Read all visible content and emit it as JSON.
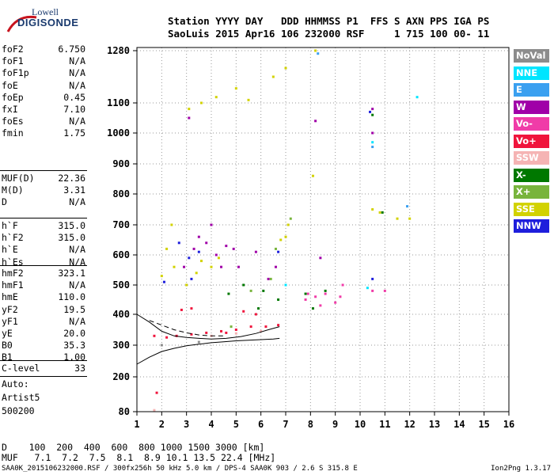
{
  "logo": {
    "line1": "Lowell",
    "line2": "DIGISONDE"
  },
  "header": {
    "line1": "Station YYYY DAY   DDD HHMMSS P1  FFS S AXN PPS IGA PS",
    "line2": "SaoLuis 2015 Apr16 106 232000 RSF     1 715 100 00- 11"
  },
  "params_group1": [
    {
      "label": "foF2",
      "value": "6.750"
    },
    {
      "label": "foF1",
      "value": "N/A"
    },
    {
      "label": "foF1p",
      "value": "N/A"
    },
    {
      "label": "foE",
      "value": "N/A"
    },
    {
      "label": "foEp",
      "value": "0.45"
    },
    {
      "label": "fxI",
      "value": "7.10"
    },
    {
      "label": "foEs",
      "value": "N/A"
    },
    {
      "label": "fmin",
      "value": "1.75"
    }
  ],
  "params_group2": [
    {
      "label": "MUF(D)",
      "value": "22.36"
    },
    {
      "label": "M(D)",
      "value": "3.31"
    },
    {
      "label": "D",
      "value": "N/A"
    }
  ],
  "params_group3": [
    {
      "label": "h`F",
      "value": "315.0"
    },
    {
      "label": "h`F2",
      "value": "315.0"
    },
    {
      "label": "h`E",
      "value": "N/A"
    },
    {
      "label": "h`Es",
      "value": "N/A"
    }
  ],
  "params_group4": [
    {
      "label": "hmF2",
      "value": "323.1"
    },
    {
      "label": "hmF1",
      "value": "N/A"
    },
    {
      "label": "hmE",
      "value": "110.0"
    },
    {
      "label": "yF2",
      "value": "19.5"
    },
    {
      "label": "yF1",
      "value": "N/A"
    },
    {
      "label": "yE",
      "value": "20.0"
    },
    {
      "label": "B0",
      "value": "35.3"
    },
    {
      "label": "B1",
      "value": "1.00"
    }
  ],
  "params_group5": [
    {
      "label": "C-level",
      "value": "33"
    }
  ],
  "auto": {
    "line1": "Auto:",
    "line2": "Artist5",
    "line3": "500200"
  },
  "legend": [
    {
      "label": "NoVal",
      "color": "#8c8c8c"
    },
    {
      "label": "NNE",
      "color": "#00e5ff"
    },
    {
      "label": "E",
      "color": "#3aa0f0"
    },
    {
      "label": "W",
      "color": "#a000a8"
    },
    {
      "label": "Vo-",
      "color": "#f03ca8"
    },
    {
      "label": "Vo+",
      "color": "#f0143c"
    },
    {
      "label": "SSW",
      "color": "#f5b4b4"
    },
    {
      "label": "X-",
      "color": "#007800"
    },
    {
      "label": "X+",
      "color": "#78b43c"
    },
    {
      "label": "SSE",
      "color": "#d2d200"
    },
    {
      "label": "NNW",
      "color": "#1e1edc"
    }
  ],
  "bottom": {
    "d_row": "D    100  200  400  600  800 1000 1500 3000 [km]",
    "muf_row": "MUF   7.1  7.2  7.5  8.1  8.9 10.1 13.5 22.4 [MHz]"
  },
  "footer": {
    "left": "SAA0K_2015106232000.RSF / 300fx256h 50 kHz 5.0 km / DPS-4 SAA0K 903 / 2.6 S 315.8 E",
    "right": "Ion2Png 1.3.17"
  },
  "chart_data": {
    "type": "scatter",
    "title": "",
    "xlabel": "",
    "ylabel": "",
    "x_ticks": [
      "1",
      "2",
      "3",
      "4",
      "5",
      "6",
      "7",
      "8",
      "9",
      "10",
      "11",
      "12",
      "13",
      "14",
      "15",
      "16"
    ],
    "y_ticks": [
      "80",
      "200",
      "300",
      "400",
      "500",
      "600",
      "700",
      "800",
      "900",
      "1000",
      "1100",
      "1280"
    ],
    "xlim": [
      1,
      16
    ],
    "ylim": [
      80,
      1280
    ],
    "y_scale": "nonlinear",
    "grid": true,
    "series": [
      {
        "name": "W",
        "color": "#a000a8",
        "points": [
          [
            2.9,
            560
          ],
          [
            3.1,
            1050
          ],
          [
            3.3,
            620
          ],
          [
            3.5,
            660
          ],
          [
            4.0,
            700
          ],
          [
            4.4,
            560
          ],
          [
            4.6,
            630
          ],
          [
            4.9,
            620
          ],
          [
            5.1,
            560
          ],
          [
            5.8,
            610
          ],
          [
            6.3,
            520
          ],
          [
            6.6,
            560
          ],
          [
            8.2,
            1040
          ],
          [
            10.5,
            1080
          ],
          [
            10.5,
            1000
          ],
          [
            8.4,
            590
          ],
          [
            3.8,
            640
          ],
          [
            4.2,
            600
          ]
        ]
      },
      {
        "name": "Vo-",
        "color": "#f03ca8",
        "points": [
          [
            7.8,
            450
          ],
          [
            8.2,
            460
          ],
          [
            8.6,
            470
          ],
          [
            9.0,
            440
          ],
          [
            9.3,
            500
          ],
          [
            8.4,
            430
          ],
          [
            7.9,
            470
          ],
          [
            9.2,
            460
          ],
          [
            10.5,
            480
          ],
          [
            11.0,
            480
          ]
        ]
      },
      {
        "name": "Vo+",
        "color": "#f0143c",
        "points": [
          [
            1.7,
            330
          ],
          [
            2.2,
            325
          ],
          [
            2.6,
            330
          ],
          [
            3.2,
            335
          ],
          [
            3.8,
            340
          ],
          [
            4.4,
            345
          ],
          [
            5.0,
            350
          ],
          [
            5.6,
            360
          ],
          [
            6.2,
            360
          ],
          [
            6.7,
            365
          ],
          [
            4.6,
            340
          ],
          [
            5.3,
            410
          ],
          [
            5.8,
            400
          ],
          [
            2.8,
            415
          ],
          [
            1.8,
            145
          ],
          [
            3.2,
            420
          ]
        ]
      },
      {
        "name": "X-",
        "color": "#007800",
        "points": [
          [
            4.7,
            470
          ],
          [
            5.3,
            500
          ],
          [
            6.1,
            480
          ],
          [
            6.7,
            450
          ],
          [
            7.8,
            470
          ],
          [
            8.1,
            420
          ],
          [
            8.6,
            480
          ],
          [
            10.5,
            1060
          ],
          [
            10.9,
            740
          ],
          [
            5.9,
            420
          ]
        ]
      },
      {
        "name": "X+",
        "color": "#78b43c",
        "points": [
          [
            4.8,
            360
          ],
          [
            5.6,
            480
          ],
          [
            6.4,
            520
          ],
          [
            6.6,
            620
          ],
          [
            7.2,
            720
          ]
        ]
      },
      {
        "name": "SSE",
        "color": "#d2d200",
        "points": [
          [
            2.0,
            530
          ],
          [
            2.5,
            560
          ],
          [
            3.0,
            500
          ],
          [
            3.4,
            540
          ],
          [
            3.6,
            580
          ],
          [
            4.0,
            560
          ],
          [
            4.3,
            590
          ],
          [
            2.2,
            620
          ],
          [
            3.1,
            1080
          ],
          [
            3.6,
            1100
          ],
          [
            4.2,
            1120
          ],
          [
            5.0,
            1150
          ],
          [
            5.5,
            1110
          ],
          [
            6.5,
            1190
          ],
          [
            7.0,
            1220
          ],
          [
            8.2,
            1280
          ],
          [
            7.1,
            700
          ],
          [
            8.1,
            860
          ],
          [
            10.5,
            750
          ],
          [
            10.8,
            740
          ],
          [
            11.5,
            720
          ],
          [
            12.0,
            720
          ],
          [
            6.8,
            650
          ],
          [
            7.0,
            660
          ],
          [
            2.4,
            700
          ]
        ]
      },
      {
        "name": "NNW",
        "color": "#1e1edc",
        "points": [
          [
            2.7,
            640
          ],
          [
            3.1,
            590
          ],
          [
            3.5,
            610
          ],
          [
            2.1,
            510
          ],
          [
            3.2,
            520
          ],
          [
            6.7,
            610
          ],
          [
            10.4,
            1070
          ],
          [
            10.5,
            520
          ]
        ]
      },
      {
        "name": "NNE",
        "color": "#00e5ff",
        "points": [
          [
            10.5,
            970
          ],
          [
            12.3,
            1120
          ],
          [
            10.3,
            490
          ],
          [
            7.0,
            500
          ]
        ]
      },
      {
        "name": "E",
        "color": "#3aa0f0",
        "points": [
          [
            10.5,
            955
          ],
          [
            8.3,
            1270
          ],
          [
            11.9,
            760
          ]
        ]
      },
      {
        "name": "SSW",
        "color": "#f5b4b4",
        "points": [
          [
            4.0,
            330
          ],
          [
            5.0,
            338
          ],
          [
            6.0,
            345
          ],
          [
            1.7,
            85
          ]
        ]
      },
      {
        "name": "NoVal",
        "color": "#8c8c8c",
        "points": [
          [
            2.0,
            300
          ],
          [
            3.5,
            310
          ]
        ]
      }
    ],
    "profile_curves": [
      {
        "style": "solid",
        "points": [
          [
            1.0,
            240
          ],
          [
            1.5,
            262
          ],
          [
            2.0,
            280
          ],
          [
            2.5,
            290
          ],
          [
            3.0,
            298
          ],
          [
            3.5,
            303
          ],
          [
            4.0,
            308
          ],
          [
            4.5,
            311
          ],
          [
            5.0,
            314
          ],
          [
            5.5,
            316
          ],
          [
            6.0,
            318
          ],
          [
            6.5,
            320
          ],
          [
            6.75,
            322
          ]
        ]
      },
      {
        "style": "solid",
        "points": [
          [
            1.0,
            400
          ],
          [
            1.5,
            375
          ],
          [
            2.0,
            345
          ],
          [
            2.5,
            330
          ],
          [
            3.0,
            325
          ],
          [
            3.5,
            322
          ],
          [
            4.0,
            320
          ],
          [
            4.6,
            322
          ],
          [
            5.2,
            328
          ],
          [
            5.8,
            338
          ],
          [
            6.3,
            350
          ],
          [
            6.75,
            360
          ]
        ]
      },
      {
        "style": "dashed",
        "points": [
          [
            1.5,
            380
          ],
          [
            2.0,
            365
          ],
          [
            2.5,
            350
          ],
          [
            3.0,
            340
          ],
          [
            3.5,
            333
          ],
          [
            4.0,
            330
          ],
          [
            4.5,
            330
          ]
        ]
      }
    ]
  }
}
